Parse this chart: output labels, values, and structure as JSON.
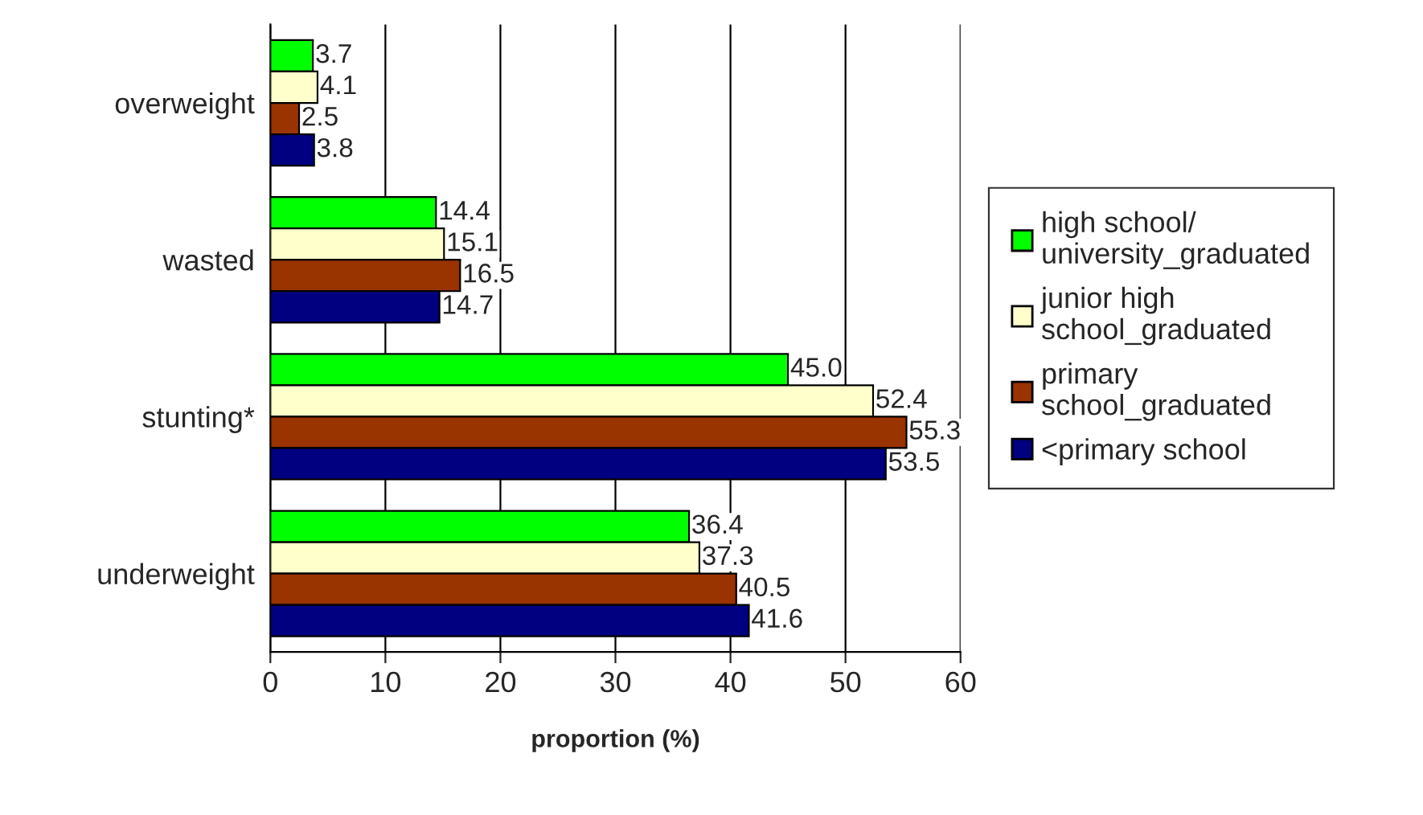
{
  "chart_data": {
    "type": "bar",
    "orientation": "horizontal",
    "xlabel": "proportion (%)",
    "categories": [
      "overweight",
      "wasted",
      "stunting*",
      "underweight"
    ],
    "series": [
      {
        "name": "high school/\nuniversity_graduated",
        "color": "#00ff00",
        "values": [
          3.7,
          14.4,
          45.0,
          36.4
        ],
        "value_labels": [
          "3.7",
          "14.4",
          "45.0",
          "36.4"
        ]
      },
      {
        "name": "junior high\nschool_graduated",
        "color": "#ffffcc",
        "values": [
          4.1,
          15.1,
          52.4,
          37.3
        ],
        "value_labels": [
          "4.1",
          "15.1",
          "52.4",
          "37.3"
        ]
      },
      {
        "name": "primary\nschool_graduated",
        "color": "#993300",
        "values": [
          2.5,
          16.5,
          55.3,
          40.5
        ],
        "value_labels": [
          "2.5",
          "16.5",
          "55.3",
          "40.5"
        ]
      },
      {
        "name": "<primary school",
        "color": "#000080",
        "values": [
          3.8,
          14.7,
          53.5,
          41.6
        ],
        "value_labels": [
          "3.8",
          "14.7",
          "53.5",
          "41.6"
        ]
      }
    ],
    "xlim": [
      0,
      60
    ],
    "xticks": [
      0,
      10,
      20,
      30,
      40,
      50,
      60
    ],
    "grid": "x",
    "legend": "right"
  }
}
